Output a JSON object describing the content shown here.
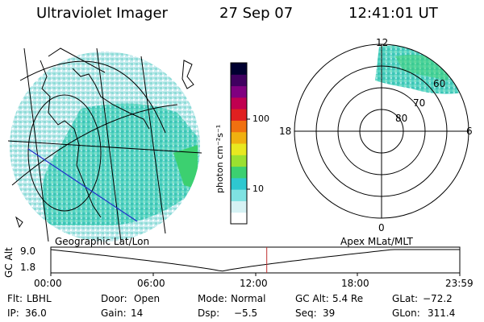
{
  "header": {
    "instrument": "Ultraviolet Imager",
    "date": "27 Sep 07",
    "time": "12:41:01 UT"
  },
  "colorbar": {
    "unit_label": "photon cm⁻²s⁻¹",
    "ticks": [
      "100",
      "10"
    ],
    "scale": "log",
    "colors": [
      "#ffffff",
      "#d6f2f4",
      "#7fe2e2",
      "#2ec8d0",
      "#3cd070",
      "#9be030",
      "#e8e820",
      "#f0b010",
      "#f07010",
      "#e02020",
      "#c00050",
      "#800080",
      "#400060",
      "#000030"
    ]
  },
  "left_map": {
    "label": "Geographic Lat/Lon",
    "emission_color": "#5fd6c0"
  },
  "polar_plot": {
    "label": "Apex MLat/MLT",
    "mlt_labels": {
      "top": "12",
      "left": "18",
      "right": "6",
      "bottom": "0"
    },
    "lat_labels": [
      "60",
      "70",
      "80"
    ]
  },
  "altitude_plot": {
    "ylabel": "GC Alt",
    "y_ticks": [
      "9.0",
      "1.8"
    ],
    "x_ticks": [
      "00:00",
      "06:00",
      "12:00",
      "18:00",
      "23:59"
    ],
    "current_time_marker_color": "#c03030",
    "current_time_fraction": 0.528
  },
  "status": {
    "row1": [
      {
        "label": "Flt:",
        "value": "LBHL"
      },
      {
        "label": "Door:",
        "value": "Open"
      },
      {
        "label": "Mode:",
        "value": "Normal"
      },
      {
        "label": "GC Alt:",
        "value": "5.4 Re"
      },
      {
        "label": "GLat:",
        "value": "−72.2"
      }
    ],
    "row2": [
      {
        "label": "IP:",
        "value": "36.0"
      },
      {
        "label": "Gain:",
        "value": "14"
      },
      {
        "label": "Dsp:",
        "value": "−5.5"
      },
      {
        "label": "Seq:",
        "value": "39"
      },
      {
        "label": "GLon:",
        "value": "311.4"
      }
    ]
  }
}
